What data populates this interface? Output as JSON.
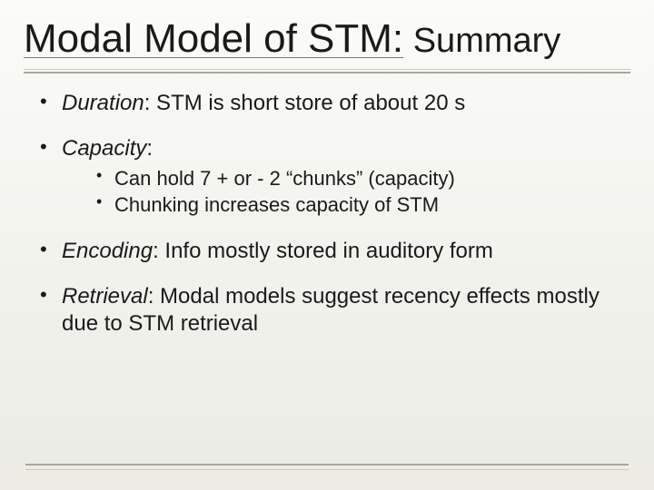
{
  "slide": {
    "title_main": "Modal Model of STM:",
    "title_sub": " Summary",
    "bullets": [
      {
        "term": "Duration",
        "text": ": STM is short store of about 20 s"
      },
      {
        "term": "Capacity",
        "text": ":",
        "sub": [
          "Can hold 7 + or - 2 “chunks” (capacity)",
          "Chunking increases capacity of STM"
        ]
      },
      {
        "term": "Encoding",
        "text": ": Info mostly stored in auditory form"
      },
      {
        "term": "Retrieval",
        "text": ": Modal models suggest recency effects mostly due to STM retrieval"
      }
    ]
  },
  "style": {
    "background_gradient_top": "#fbfbf8",
    "background_gradient_bottom": "#ebebe4",
    "text_color": "#1a1a1a",
    "divider_color_main": "#a8a898",
    "divider_color_light": "#c8c8bc",
    "title_fontsize": 44,
    "title_sub_fontsize": 38,
    "body_fontsize": 24,
    "sub_bullet_fontsize": 22,
    "font_family": "Arial"
  }
}
